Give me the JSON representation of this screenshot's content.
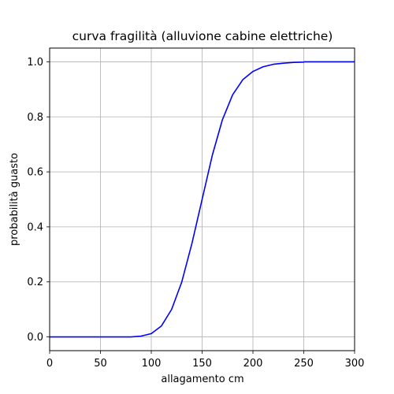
{
  "chart_data": {
    "type": "line",
    "title": "curva fragilità (alluvione cabine elettriche)",
    "xlabel": "allagamento cm",
    "ylabel": "probabilità guasto",
    "xlim": [
      0,
      300
    ],
    "ylim": [
      -0.05,
      1.05
    ],
    "xticks": [
      0,
      50,
      100,
      150,
      200,
      250,
      300
    ],
    "yticks": [
      0.0,
      0.2,
      0.4,
      0.6,
      0.8,
      1.0
    ],
    "xtick_labels": [
      "0",
      "50",
      "100",
      "150",
      "200",
      "250",
      "300"
    ],
    "ytick_labels": [
      "0.0",
      "0.2",
      "0.4",
      "0.6",
      "0.8",
      "1.0"
    ],
    "grid": true,
    "legend": "none",
    "series": [
      {
        "color": "#0000ff",
        "x": [
          0,
          50,
          80,
          90,
          100,
          110,
          120,
          130,
          140,
          150,
          160,
          170,
          180,
          190,
          200,
          210,
          220,
          230,
          240,
          250,
          250.5,
          260,
          280,
          300
        ],
        "y": [
          0.0,
          0.0,
          0.0,
          0.003,
          0.012,
          0.04,
          0.1,
          0.2,
          0.34,
          0.5,
          0.66,
          0.79,
          0.88,
          0.935,
          0.965,
          0.982,
          0.991,
          0.995,
          0.998,
          0.999,
          1.0,
          1.0,
          1.0,
          1.0
        ]
      }
    ]
  }
}
